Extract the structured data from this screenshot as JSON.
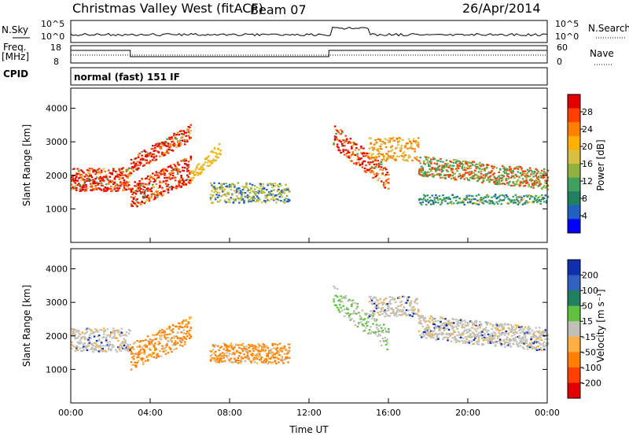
{
  "header": {
    "station": "Christmas Valley West (fitACF)",
    "beam": "Beam 07",
    "date": "26/Apr/2014"
  },
  "noise_panel": {
    "left_label": "N.Sky",
    "right_label": "N.Search",
    "left_ticks": [
      "10^5",
      "10^0"
    ],
    "right_ticks": [
      "10^5",
      "10^0"
    ]
  },
  "freq_panel": {
    "left_label_1": "Freq.",
    "left_label_2": "[MHz]",
    "right_label": "Nave",
    "left_ticks": [
      "18",
      "8"
    ],
    "right_ticks": [
      "60",
      "0"
    ]
  },
  "cpid": {
    "label": "CPID",
    "value": "normal (fast) 151 IF"
  },
  "chart_data": [
    {
      "type": "heatmap",
      "name_key": "power",
      "ylabel": "Slant Range [km]",
      "xlabel": "",
      "ylim": [
        0,
        4600
      ],
      "yticks": [
        1000,
        2000,
        3000,
        4000
      ],
      "xticks": [
        "00:00",
        "04:00",
        "08:00",
        "12:00",
        "16:00",
        "20:00",
        "00:00"
      ],
      "colorbar": {
        "label": "Power [dB]",
        "ticks": [
          "28",
          "24",
          "20",
          "16",
          "12",
          "8",
          "4"
        ],
        "colors": [
          "#e00000",
          "#ff4000",
          "#ff8000",
          "#ffb000",
          "#d8c040",
          "#90b040",
          "#40a060",
          "#208060",
          "#2060c0",
          "#0000ff"
        ]
      }
    },
    {
      "type": "heatmap",
      "name_key": "velocity",
      "ylabel": "Slant Range [km]",
      "xlabel": "Time UT",
      "ylim": [
        0,
        4600
      ],
      "yticks": [
        1000,
        2000,
        3000,
        4000
      ],
      "xticks": [
        "00:00",
        "04:00",
        "08:00",
        "12:00",
        "16:00",
        "20:00",
        "00:00"
      ],
      "colorbar": {
        "label": "Velocity [m s⁻¹]",
        "ticks": [
          "200",
          "100",
          "50",
          "15",
          "-15",
          "-50",
          "-100",
          "-200"
        ],
        "colors": [
          "#1030b0",
          "#3060c0",
          "#208060",
          "#60c040",
          "#c0c0b8",
          "#ffb040",
          "#ff8000",
          "#ff4000",
          "#e00000"
        ]
      }
    }
  ]
}
